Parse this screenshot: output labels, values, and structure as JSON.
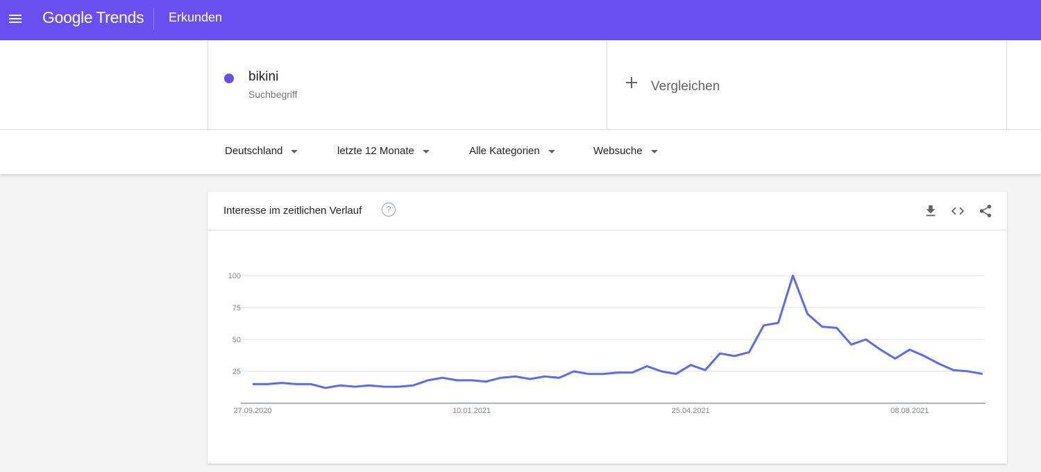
{
  "header": {
    "logo_google": "Google",
    "logo_trends": "Trends",
    "page_title": "Erkunden",
    "bar_color": "#6a4ff0"
  },
  "term": {
    "name": "bikini",
    "type": "Suchbegriff",
    "color": "#6a4ff0"
  },
  "compare": {
    "label": "Vergleichen"
  },
  "filters": [
    {
      "label": "Deutschland"
    },
    {
      "label": "letzte 12 Monate"
    },
    {
      "label": "Alle Kategorien"
    },
    {
      "label": "Websuche"
    }
  ],
  "card": {
    "title": "Interesse im zeitlichen Verlauf",
    "help_icon": "help-circle-icon",
    "actions": [
      "download-icon",
      "embed-code-icon",
      "share-icon"
    ]
  },
  "chart_data": {
    "type": "line",
    "title": "",
    "xlabel": "",
    "ylabel": "",
    "ylim": [
      0,
      100
    ],
    "yticks": [
      "25",
      "50",
      "75",
      "100"
    ],
    "x_tick_labels": [
      "27.09.2020",
      "10.01.2021",
      "25.04.2021",
      "08.08.2021"
    ],
    "x_tick_indices": [
      0,
      15,
      30,
      45
    ],
    "grid": true,
    "line_color": "#5b6af0",
    "series": [
      {
        "values": [
          15,
          15,
          16,
          15,
          15,
          12,
          14,
          13,
          14,
          13,
          13,
          14,
          18,
          20,
          18,
          18,
          17,
          20,
          21,
          19,
          21,
          20,
          25,
          23,
          23,
          24,
          24,
          29,
          25,
          23,
          30,
          26,
          39,
          37,
          40,
          61,
          63,
          100,
          70,
          60,
          59,
          46,
          50,
          42,
          35,
          42,
          37,
          31,
          26,
          25,
          23
        ]
      }
    ]
  }
}
